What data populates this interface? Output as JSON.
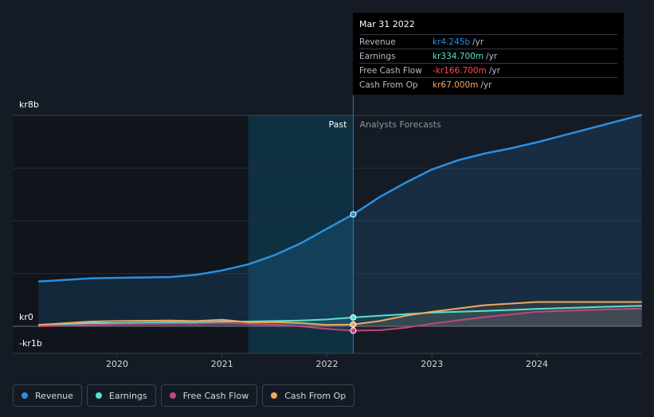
{
  "tooltip": {
    "date": "Mar 31 2022",
    "rows": [
      {
        "label": "Revenue",
        "value": "kr4.245b",
        "unit": "/yr",
        "color": "#2c8fe0"
      },
      {
        "label": "Earnings",
        "value": "kr334.700m",
        "unit": "/yr",
        "color": "#5ce0cf"
      },
      {
        "label": "Free Cash Flow",
        "value": "-kr166.700m",
        "unit": "/yr",
        "color": "#ff4d4d"
      },
      {
        "label": "Cash From Op",
        "value": "kr67.000m",
        "unit": "/yr",
        "color": "#f0a95e"
      }
    ]
  },
  "regions": {
    "past": "Past",
    "forecast": "Analysts Forecasts"
  },
  "legend": [
    {
      "label": "Revenue",
      "color": "#2c8fe0"
    },
    {
      "label": "Earnings",
      "color": "#5ce0cf"
    },
    {
      "label": "Free Cash Flow",
      "color": "#c2457e"
    },
    {
      "label": "Cash From Op",
      "color": "#f0a95e"
    }
  ],
  "chart_data": {
    "type": "line",
    "title": "",
    "xlabel": "",
    "ylabel": "",
    "ylim": [
      -1.0,
      8.0
    ],
    "y_unit": "kr billions",
    "x_ticks": [
      "2020",
      "2021",
      "2022",
      "2023",
      "2024"
    ],
    "y_tick_labels": [
      {
        "value": 8,
        "label": "kr8b"
      },
      {
        "value": 0,
        "label": "kr0"
      },
      {
        "value": -1,
        "label": "-kr1b"
      }
    ],
    "past_end": 2022.25,
    "highlight_start": 2021.25,
    "series": [
      {
        "name": "Revenue",
        "color": "#2c8fe0",
        "points": [
          [
            2019.25,
            1.7
          ],
          [
            2019.75,
            1.82
          ],
          [
            2020.0,
            1.84
          ],
          [
            2020.5,
            1.87
          ],
          [
            2020.75,
            1.95
          ],
          [
            2021.0,
            2.12
          ],
          [
            2021.25,
            2.35
          ],
          [
            2021.5,
            2.7
          ],
          [
            2021.75,
            3.15
          ],
          [
            2022.0,
            3.7
          ],
          [
            2022.25,
            4.245
          ],
          [
            2022.5,
            4.9
          ],
          [
            2022.75,
            5.45
          ],
          [
            2023.0,
            5.95
          ],
          [
            2023.25,
            6.3
          ],
          [
            2023.5,
            6.55
          ],
          [
            2023.75,
            6.75
          ],
          [
            2024.0,
            6.98
          ],
          [
            2024.5,
            7.5
          ],
          [
            2025.0,
            8.02
          ]
        ]
      },
      {
        "name": "Earnings",
        "color": "#5ce0cf",
        "points": [
          [
            2019.25,
            0.05
          ],
          [
            2019.75,
            0.12
          ],
          [
            2020.0,
            0.12
          ],
          [
            2020.5,
            0.15
          ],
          [
            2020.75,
            0.14
          ],
          [
            2021.0,
            0.18
          ],
          [
            2021.25,
            0.18
          ],
          [
            2021.5,
            0.2
          ],
          [
            2021.75,
            0.22
          ],
          [
            2022.0,
            0.26
          ],
          [
            2022.25,
            0.335
          ],
          [
            2022.5,
            0.4
          ],
          [
            2022.75,
            0.46
          ],
          [
            2023.0,
            0.52
          ],
          [
            2023.5,
            0.58
          ],
          [
            2024.0,
            0.66
          ],
          [
            2024.5,
            0.72
          ],
          [
            2025.0,
            0.78
          ]
        ]
      },
      {
        "name": "Free Cash Flow",
        "color": "#c2457e",
        "points": [
          [
            2019.25,
            0.0
          ],
          [
            2019.75,
            0.05
          ],
          [
            2020.0,
            0.08
          ],
          [
            2020.5,
            0.1
          ],
          [
            2020.75,
            0.1
          ],
          [
            2021.0,
            0.12
          ],
          [
            2021.25,
            0.1
          ],
          [
            2021.5,
            0.06
          ],
          [
            2021.75,
            0.0
          ],
          [
            2022.0,
            -0.1
          ],
          [
            2022.25,
            -0.167
          ],
          [
            2022.5,
            -0.15
          ],
          [
            2022.75,
            -0.05
          ],
          [
            2023.0,
            0.1
          ],
          [
            2023.5,
            0.35
          ],
          [
            2024.0,
            0.55
          ],
          [
            2024.5,
            0.62
          ],
          [
            2025.0,
            0.67
          ]
        ]
      },
      {
        "name": "Cash From Op",
        "color": "#f0a95e",
        "points": [
          [
            2019.25,
            0.05
          ],
          [
            2019.75,
            0.18
          ],
          [
            2020.0,
            0.2
          ],
          [
            2020.5,
            0.22
          ],
          [
            2020.75,
            0.2
          ],
          [
            2021.0,
            0.25
          ],
          [
            2021.25,
            0.15
          ],
          [
            2021.5,
            0.16
          ],
          [
            2021.75,
            0.12
          ],
          [
            2022.0,
            0.05
          ],
          [
            2022.25,
            0.067
          ],
          [
            2022.5,
            0.2
          ],
          [
            2022.75,
            0.4
          ],
          [
            2023.0,
            0.55
          ],
          [
            2023.5,
            0.8
          ],
          [
            2024.0,
            0.92
          ],
          [
            2024.5,
            0.92
          ],
          [
            2025.0,
            0.92
          ]
        ]
      }
    ]
  }
}
